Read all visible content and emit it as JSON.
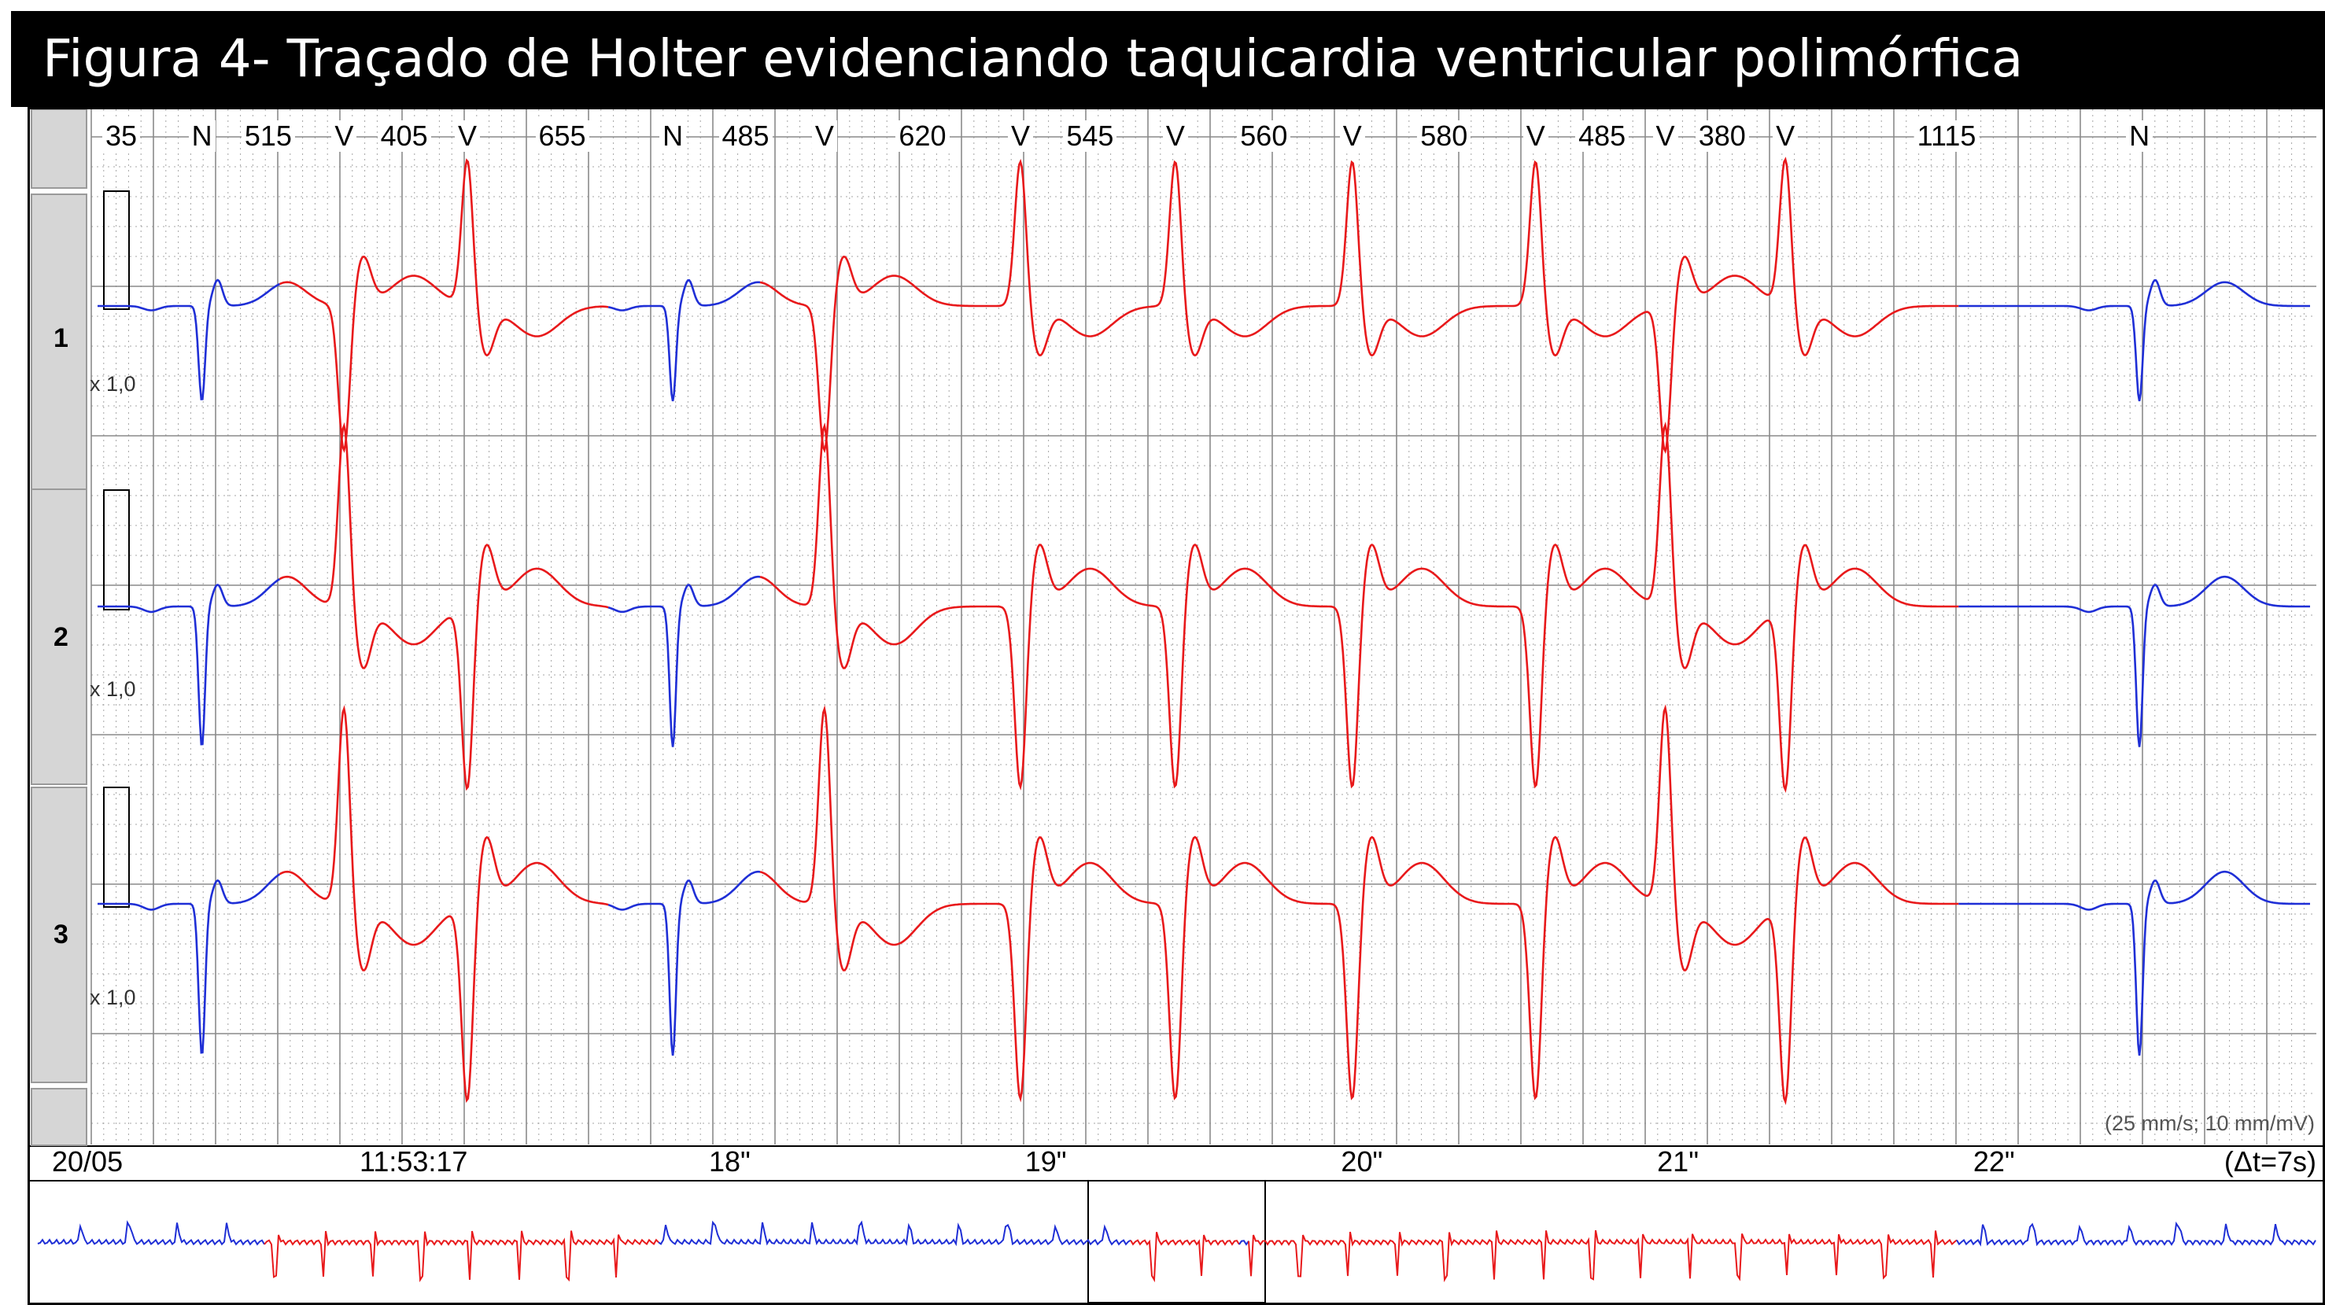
{
  "title": "Figura 4- Traçado de Holter evidenciando taquicardia ventricular polimórfica",
  "beat_annotations": [
    {
      "text": "35",
      "t": 0.0
    },
    {
      "text": "N",
      "t": 0.33
    },
    {
      "text": "515",
      "t": 0.54
    },
    {
      "text": "V",
      "t": 0.78
    },
    {
      "text": "405",
      "t": 0.97
    },
    {
      "text": "V",
      "t": 1.17
    },
    {
      "text": "655",
      "t": 1.47
    },
    {
      "text": "N",
      "t": 1.82
    },
    {
      "text": "485",
      "t": 2.05
    },
    {
      "text": "V",
      "t": 2.3
    },
    {
      "text": "620",
      "t": 2.61
    },
    {
      "text": "V",
      "t": 2.92
    },
    {
      "text": "545",
      "t": 3.14
    },
    {
      "text": "V",
      "t": 3.41
    },
    {
      "text": "560",
      "t": 3.69
    },
    {
      "text": "V",
      "t": 3.97
    },
    {
      "text": "580",
      "t": 4.26
    },
    {
      "text": "V",
      "t": 4.55
    },
    {
      "text": "485",
      "t": 4.76
    },
    {
      "text": "V",
      "t": 4.96
    },
    {
      "text": "380",
      "t": 5.14
    },
    {
      "text": "V",
      "t": 5.34
    },
    {
      "text": "1115",
      "t": 5.85
    },
    {
      "text": "N",
      "t": 6.46
    }
  ],
  "channels": [
    {
      "label": "1",
      "gain": "x 1,0"
    },
    {
      "label": "2",
      "gain": "x 1,0"
    },
    {
      "label": "3",
      "gain": "x 1,0"
    }
  ],
  "time_axis": {
    "date": "20/05",
    "labels": [
      {
        "text": "11:53:17",
        "t": 1.0
      },
      {
        "text": "18\"",
        "t": 2.0
      },
      {
        "text": "19\"",
        "t": 3.0
      },
      {
        "text": "20\"",
        "t": 4.0
      },
      {
        "text": "21\"",
        "t": 5.0
      },
      {
        "text": "22\"",
        "t": 6.0
      }
    ],
    "window": "(Δt=7s)",
    "scale": "(25 mm/s; 10 mm/mV)",
    "duration_s": 7
  },
  "beats": [
    {
      "type": "N",
      "t": 0.33
    },
    {
      "type": "V",
      "t": 0.78,
      "polarity": -1
    },
    {
      "type": "V",
      "t": 1.17,
      "polarity": 1
    },
    {
      "type": "N",
      "t": 1.82
    },
    {
      "type": "V",
      "t": 2.3,
      "polarity": -1
    },
    {
      "type": "V",
      "t": 2.92,
      "polarity": 1
    },
    {
      "type": "V",
      "t": 3.41,
      "polarity": 1
    },
    {
      "type": "V",
      "t": 3.97,
      "polarity": 1
    },
    {
      "type": "V",
      "t": 4.55,
      "polarity": 1
    },
    {
      "type": "V",
      "t": 4.96,
      "polarity": -1
    },
    {
      "type": "V",
      "t": 5.34,
      "polarity": 1
    },
    {
      "type": "N",
      "t": 6.46
    }
  ],
  "colors": {
    "normal_trace": "#1f2fd6",
    "ventricular_trace": "#e8191b",
    "grid": "#a6a6a6",
    "sidebar": "#d6d6d6"
  }
}
